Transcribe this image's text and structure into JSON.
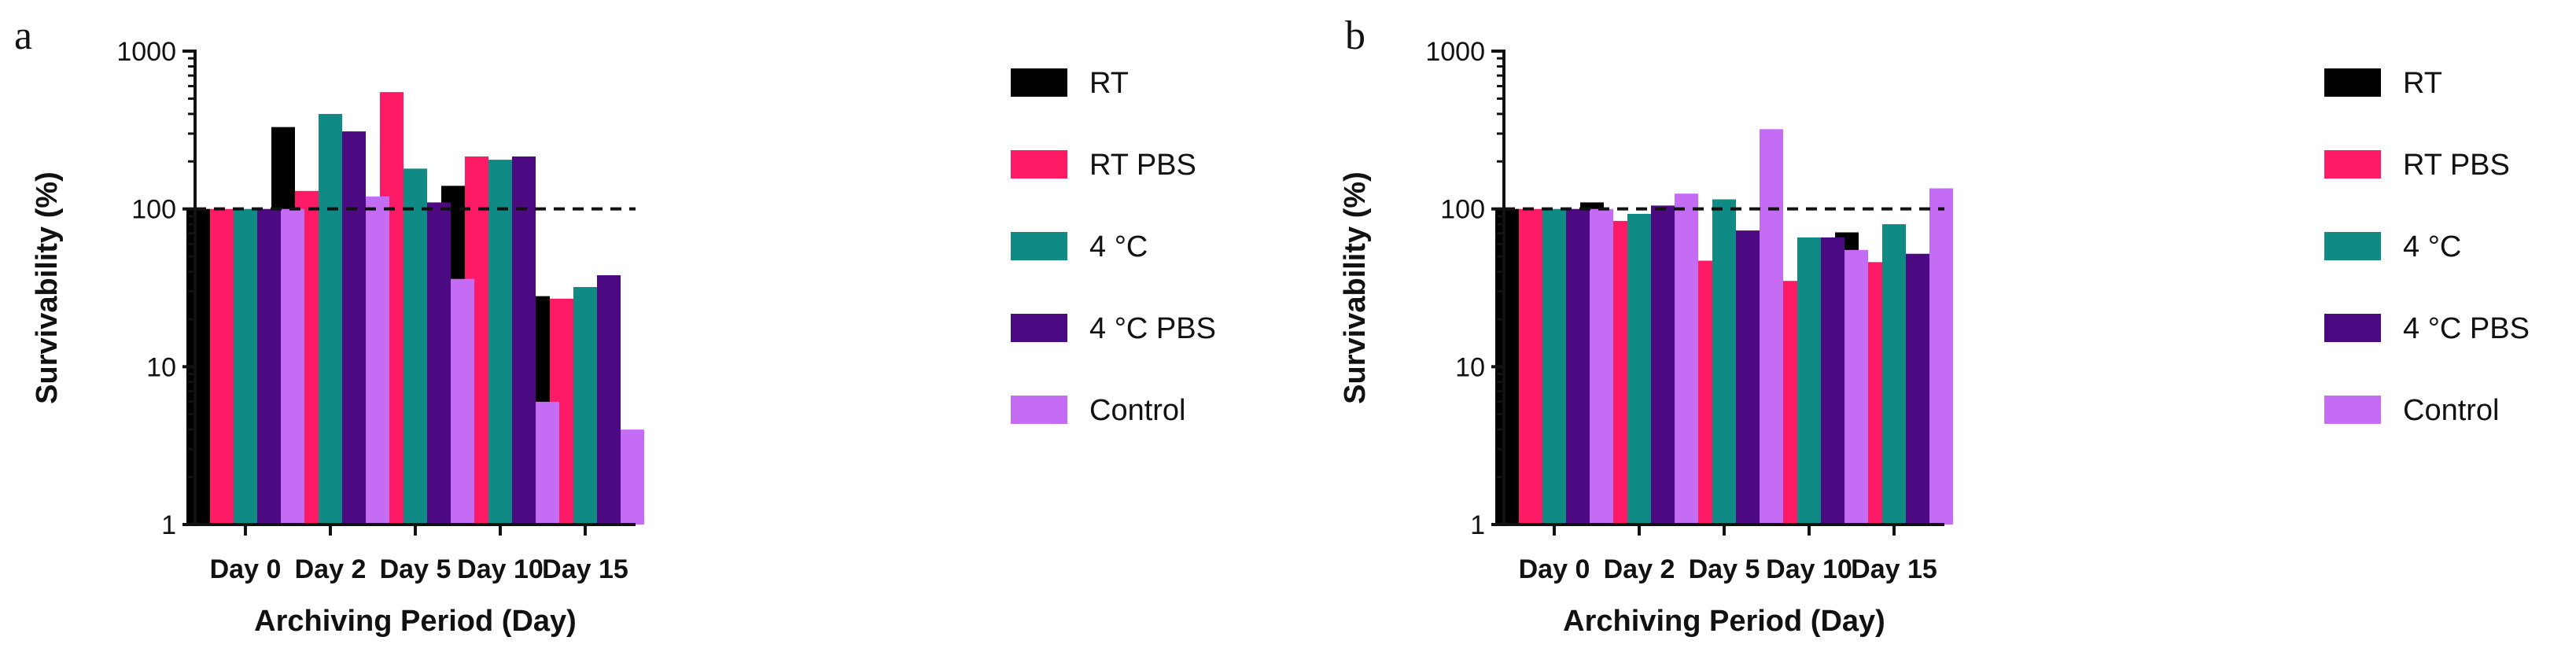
{
  "chart_data": [
    {
      "type": "bar",
      "panel": "a",
      "yscale": "log",
      "ylim": [
        1,
        1000
      ],
      "yticks": [
        "1",
        "10",
        "100",
        "1000"
      ],
      "reference_line": 100,
      "xlabel": "Archiving Period (Day)",
      "ylabel": "Survivability (%)",
      "categories": [
        "Day 0",
        "Day 2",
        "Day 5",
        "Day 10",
        "Day 15"
      ],
      "legend": "right",
      "series": [
        {
          "name": "RT",
          "color": "#000000",
          "values": [
            100,
            330,
            115,
            140,
            28
          ]
        },
        {
          "name": "RT PBS",
          "color": "#ff1a66",
          "values": [
            100,
            130,
            550,
            215,
            27
          ]
        },
        {
          "name": "4 °C",
          "color": "#0f8a84",
          "values": [
            100,
            400,
            180,
            205,
            32
          ]
        },
        {
          "name": "4 °C PBS",
          "color": "#4b0a82",
          "values": [
            100,
            310,
            110,
            215,
            38
          ]
        },
        {
          "name": "Control",
          "color": "#c56cf5",
          "values": [
            100,
            120,
            36,
            6,
            4
          ]
        }
      ]
    },
    {
      "type": "bar",
      "panel": "b",
      "yscale": "log",
      "ylim": [
        1,
        1000
      ],
      "yticks": [
        "1",
        "10",
        "100",
        "1000"
      ],
      "reference_line": 100,
      "xlabel": "Archiving Period (Day)",
      "ylabel": "Survivability (%)",
      "categories": [
        "Day 0",
        "Day 2",
        "Day 5",
        "Day 10",
        "Day 15"
      ],
      "legend": "right",
      "series": [
        {
          "name": "RT",
          "color": "#000000",
          "values": [
            100,
            110,
            68,
            50,
            71
          ]
        },
        {
          "name": "RT PBS",
          "color": "#ff1a66",
          "values": [
            100,
            84,
            47,
            35,
            46
          ]
        },
        {
          "name": "4 °C",
          "color": "#0f8a84",
          "values": [
            100,
            93,
            115,
            66,
            80
          ]
        },
        {
          "name": "4 °C PBS",
          "color": "#4b0a82",
          "values": [
            100,
            105,
            73,
            66,
            52
          ]
        },
        {
          "name": "Control",
          "color": "#c56cf5",
          "values": [
            100,
            125,
            320,
            55,
            135
          ]
        }
      ]
    }
  ]
}
